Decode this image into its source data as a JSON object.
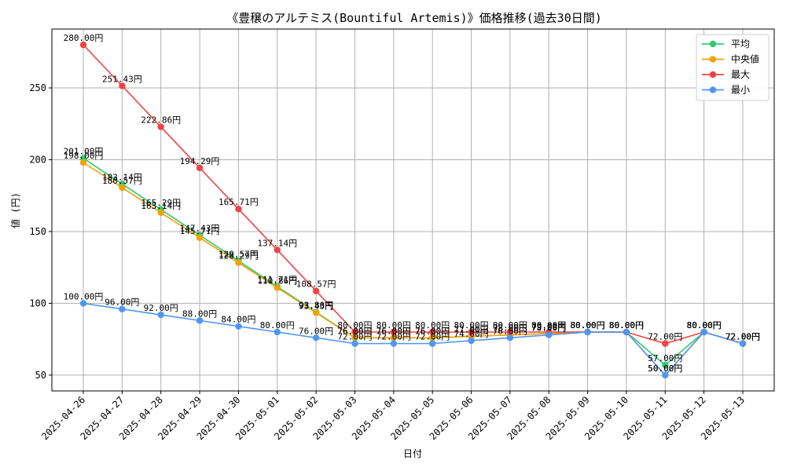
{
  "chart_data": {
    "type": "line",
    "title": "《豊穣のアルテミス(Bountiful Artemis)》価格推移(過去30日間)",
    "xlabel": "日付",
    "ylabel": "値 (円)",
    "ylim": [
      39,
      291
    ],
    "yticks": [
      50,
      100,
      150,
      200,
      250
    ],
    "grid": true,
    "legend_position": "top-right",
    "categories": [
      "2025-04-26",
      "2025-04-27",
      "2025-04-28",
      "2025-04-29",
      "2025-04-30",
      "2025-05-01",
      "2025-05-02",
      "2025-05-03",
      "2025-05-04",
      "2025-05-05",
      "2025-05-06",
      "2025-05-07",
      "2025-05-08",
      "2025-05-09",
      "2025-05-10",
      "2025-05-11",
      "2025-05-12",
      "2025-05-13"
    ],
    "series": [
      {
        "name": "平均",
        "color": "#2ecc71",
        "values": [
          201.0,
          183.14,
          165.29,
          147.43,
          129.57,
          111.71,
          93.86,
          76.0,
          76.0,
          76.0,
          77.0,
          78.0,
          79.0,
          80.0,
          80.0,
          57.0,
          80.0,
          72.0
        ],
        "labels": [
          "201.00円",
          "183.14円",
          "165.29円",
          "147.43円",
          "129.57円",
          "111.71円",
          "93.86円",
          "76.00円",
          "76.00円",
          "76.00円",
          "77.00円",
          "78.00円",
          "79.00円",
          "80.00円",
          "80.00円",
          "57.00円",
          "80.00円",
          "72.00円"
        ]
      },
      {
        "name": "中央値",
        "color": "#f0a30a",
        "values": [
          198.0,
          180.57,
          163.14,
          145.71,
          128.29,
          110.86,
          93.43,
          76.0,
          76.0,
          76.0,
          77.0,
          78.0,
          79.0,
          80.0,
          80.0,
          50.0,
          80.0,
          72.0
        ],
        "labels": [
          "198.00円",
          "180.57円",
          "163.14円",
          "145.71円",
          "128.29円",
          "110.86円",
          "93.43円",
          "76.00円",
          "76.00円",
          "76.00円",
          "77.00円",
          "78.00円",
          "79.00円",
          "80.00円",
          "80.00円",
          "50.00円",
          "80.00円",
          "72.00円"
        ]
      },
      {
        "name": "最大",
        "color": "#ef4444",
        "values": [
          280.0,
          251.43,
          222.86,
          194.29,
          165.71,
          137.14,
          108.57,
          80.0,
          80.0,
          80.0,
          80.0,
          80.0,
          80.0,
          80.0,
          80.0,
          72.0,
          80.0,
          72.0
        ],
        "labels": [
          "280.00円",
          "251.43円",
          "222.86円",
          "194.29円",
          "165.71円",
          "137.14円",
          "108.57円",
          "80.00円",
          "80.00円",
          "80.00円",
          "80.00円",
          "80.00円",
          "80.00円",
          "80.00円",
          "80.00円",
          "72.00円",
          "80.00円",
          "72.00円"
        ]
      },
      {
        "name": "最小",
        "color": "#4f97f0",
        "values": [
          100.0,
          96.0,
          92.0,
          88.0,
          84.0,
          80.0,
          76.0,
          72.0,
          72.0,
          72.0,
          74.0,
          76.0,
          78.0,
          80.0,
          80.0,
          50.0,
          80.0,
          72.0
        ],
        "labels": [
          "100.00円",
          "96.00円",
          "92.00円",
          "88.00円",
          "84.00円",
          "80.00円",
          "76.00円",
          "72.00円",
          "72.00円",
          "72.00円",
          "74.00円",
          "76.00円",
          "78.00円",
          "80.00円",
          "80.00円",
          "50.00円",
          "80.00円",
          "72.00円"
        ]
      }
    ]
  }
}
